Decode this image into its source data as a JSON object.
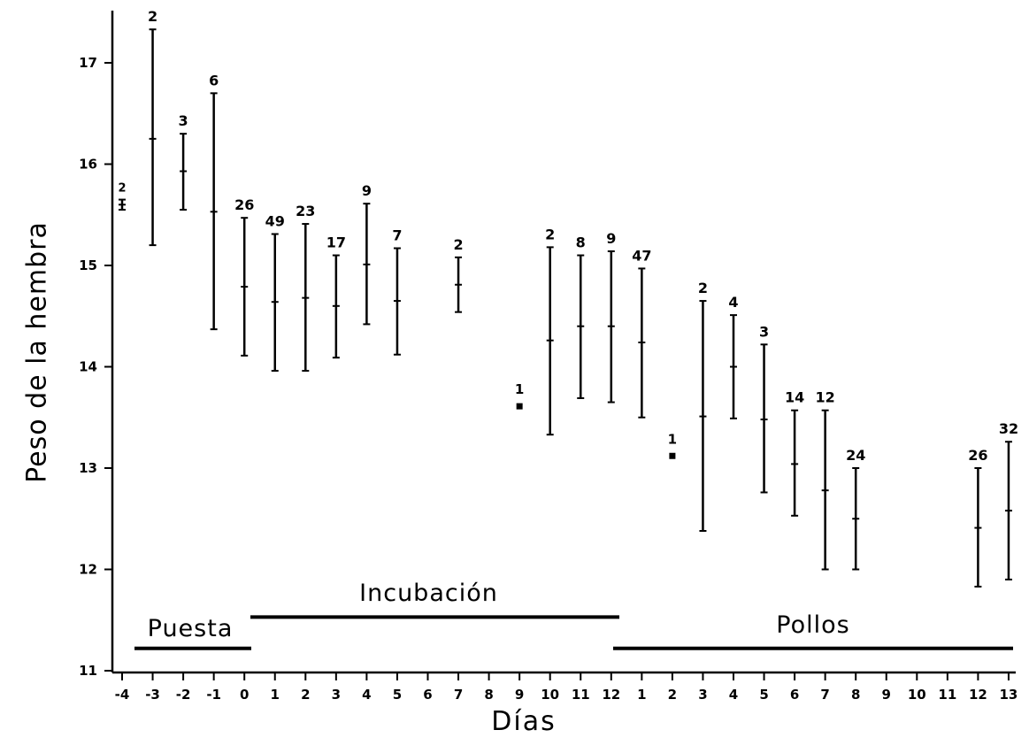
{
  "chart_data": {
    "type": "scatter",
    "subtype": "error-bar",
    "title": "",
    "xlabel": "Días",
    "ylabel": "Peso de la hembra",
    "ylim": [
      11,
      17.5
    ],
    "yticks": [
      "11",
      "12",
      "13",
      "14",
      "15",
      "16",
      "17"
    ],
    "xtick_labels": [
      "-4",
      "-3",
      "-2",
      "-1",
      "0",
      "1",
      "2",
      "3",
      "4",
      "5",
      "6",
      "7",
      "8",
      "9",
      "10",
      "11",
      "12",
      "1",
      "2",
      "3",
      "4",
      "5",
      "6",
      "7",
      "8",
      "9",
      "10",
      "11",
      "12",
      "13"
    ],
    "grid": false,
    "points": [
      {
        "pos": 0,
        "mean": 15.6,
        "low": 15.55,
        "high": 15.65,
        "n": "2"
      },
      {
        "pos": 1,
        "mean": 16.25,
        "low": 15.2,
        "high": 17.33,
        "n": "2"
      },
      {
        "pos": 2,
        "mean": 15.93,
        "low": 15.55,
        "high": 16.3,
        "n": "3"
      },
      {
        "pos": 3,
        "mean": 15.53,
        "low": 14.37,
        "high": 16.7,
        "n": "6"
      },
      {
        "pos": 4,
        "mean": 14.79,
        "low": 14.11,
        "high": 15.47,
        "n": "26"
      },
      {
        "pos": 5,
        "mean": 14.64,
        "low": 13.96,
        "high": 15.31,
        "n": "49"
      },
      {
        "pos": 6,
        "mean": 14.68,
        "low": 13.96,
        "high": 15.41,
        "n": "23"
      },
      {
        "pos": 7,
        "mean": 14.6,
        "low": 14.09,
        "high": 15.1,
        "n": "17"
      },
      {
        "pos": 8,
        "mean": 15.01,
        "low": 14.42,
        "high": 15.61,
        "n": "9"
      },
      {
        "pos": 9,
        "mean": 14.65,
        "low": 14.12,
        "high": 15.17,
        "n": "7"
      },
      {
        "pos": 11,
        "mean": 14.81,
        "low": 14.54,
        "high": 15.08,
        "n": "2"
      },
      {
        "pos": 13,
        "mean": 13.61,
        "low": null,
        "high": null,
        "n": "1"
      },
      {
        "pos": 14,
        "mean": 14.26,
        "low": 13.33,
        "high": 15.18,
        "n": "2"
      },
      {
        "pos": 15,
        "mean": 14.4,
        "low": 13.69,
        "high": 15.1,
        "n": "8"
      },
      {
        "pos": 16,
        "mean": 14.4,
        "low": 13.65,
        "high": 15.14,
        "n": "9"
      },
      {
        "pos": 17,
        "mean": 14.24,
        "low": 13.5,
        "high": 14.97,
        "n": "47"
      },
      {
        "pos": 18,
        "mean": 13.12,
        "low": null,
        "high": null,
        "n": "1"
      },
      {
        "pos": 19,
        "mean": 13.51,
        "low": 12.38,
        "high": 14.65,
        "n": "2"
      },
      {
        "pos": 20,
        "mean": 14.0,
        "low": 13.49,
        "high": 14.51,
        "n": "4"
      },
      {
        "pos": 21,
        "mean": 13.48,
        "low": 12.76,
        "high": 14.22,
        "n": "3"
      },
      {
        "pos": 22,
        "mean": 13.04,
        "low": 12.53,
        "high": 13.57,
        "n": "14"
      },
      {
        "pos": 23,
        "mean": 12.78,
        "low": 12.0,
        "high": 13.57,
        "n": "12"
      },
      {
        "pos": 24,
        "mean": 12.5,
        "low": 12.0,
        "high": 13.0,
        "n": "24"
      },
      {
        "pos": 28,
        "mean": 12.41,
        "low": 11.83,
        "high": 13.0,
        "n": "26"
      },
      {
        "pos": 29,
        "mean": 12.58,
        "low": 11.9,
        "high": 13.26,
        "n": "32"
      }
    ],
    "phases": [
      {
        "label": "Puesta",
        "start_pos": 0,
        "end_pos": 4,
        "y": 11.22
      },
      {
        "label": "Incubación",
        "start_pos": 4,
        "end_pos": 16,
        "y": 11.53
      },
      {
        "label": "Pollos",
        "start_pos": 16,
        "end_pos": 29,
        "y": 11.22
      }
    ]
  }
}
